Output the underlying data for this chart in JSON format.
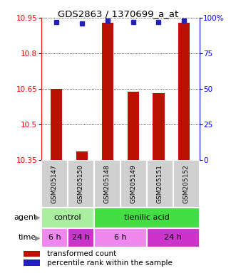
{
  "title": "GDS2863 / 1370699_a_at",
  "samples": [
    "GSM205147",
    "GSM205150",
    "GSM205148",
    "GSM205149",
    "GSM205151",
    "GSM205152"
  ],
  "bar_values": [
    10.65,
    10.385,
    10.93,
    10.638,
    10.63,
    10.93
  ],
  "bar_bottom": 10.35,
  "percentile_values": [
    97,
    96,
    98,
    97,
    97,
    98
  ],
  "ylim": [
    10.35,
    10.95
  ],
  "yticks": [
    10.35,
    10.5,
    10.65,
    10.8,
    10.95
  ],
  "ytick_labels": [
    "10.35",
    "10.5",
    "10.65",
    "10.8",
    "10.95"
  ],
  "right_yticks": [
    0,
    25,
    50,
    75,
    100
  ],
  "bar_color": "#bb1100",
  "percentile_color": "#2222bb",
  "agent_groups": [
    {
      "label": "control",
      "start": 0,
      "end": 2,
      "color": "#aaeea0"
    },
    {
      "label": "tienilic acid",
      "start": 2,
      "end": 6,
      "color": "#44dd44"
    }
  ],
  "time_groups": [
    {
      "label": "6 h",
      "start": 0,
      "end": 1,
      "color": "#ee88ee"
    },
    {
      "label": "24 h",
      "start": 1,
      "end": 2,
      "color": "#cc33cc"
    },
    {
      "label": "6 h",
      "start": 2,
      "end": 4,
      "color": "#ee88ee"
    },
    {
      "label": "24 h",
      "start": 4,
      "end": 6,
      "color": "#cc33cc"
    }
  ],
  "legend_bar_label": "transformed count",
  "legend_pct_label": "percentile rank within the sample",
  "background_color": "#ffffff",
  "sample_box_color": "#d0d0d0"
}
